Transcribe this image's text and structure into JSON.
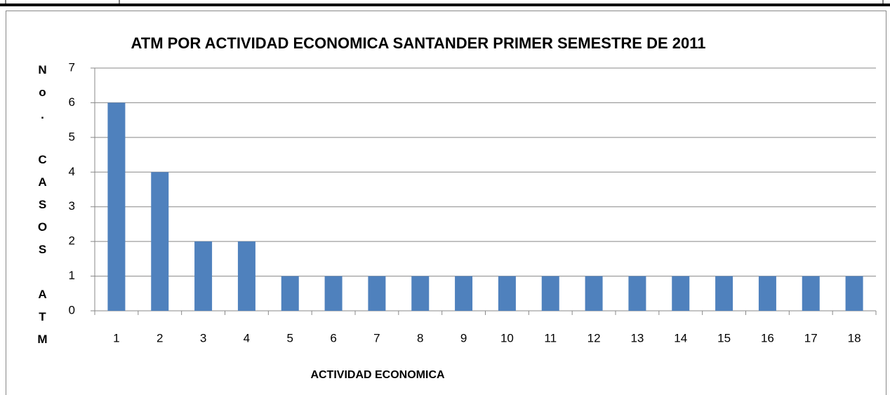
{
  "chart_data": {
    "type": "bar",
    "title": "ATM POR ACTIVIDAD ECONOMICA SANTANDER PRIMER SEMESTRE DE 2011",
    "x_label": "ACTIVIDAD ECONOMICA",
    "y_label": "No. CASOS ATM",
    "categories": [
      "1",
      "2",
      "3",
      "4",
      "5",
      "6",
      "7",
      "8",
      "9",
      "10",
      "11",
      "12",
      "13",
      "14",
      "15",
      "16",
      "17",
      "18"
    ],
    "values": [
      6,
      4,
      2,
      2,
      1,
      1,
      1,
      1,
      1,
      1,
      1,
      1,
      1,
      1,
      1,
      1,
      1,
      1
    ],
    "color": "#4f81bd",
    "ylim": [
      0,
      7
    ],
    "yticks": [
      0,
      1,
      2,
      3,
      4,
      5,
      6,
      7
    ],
    "grid": true
  }
}
